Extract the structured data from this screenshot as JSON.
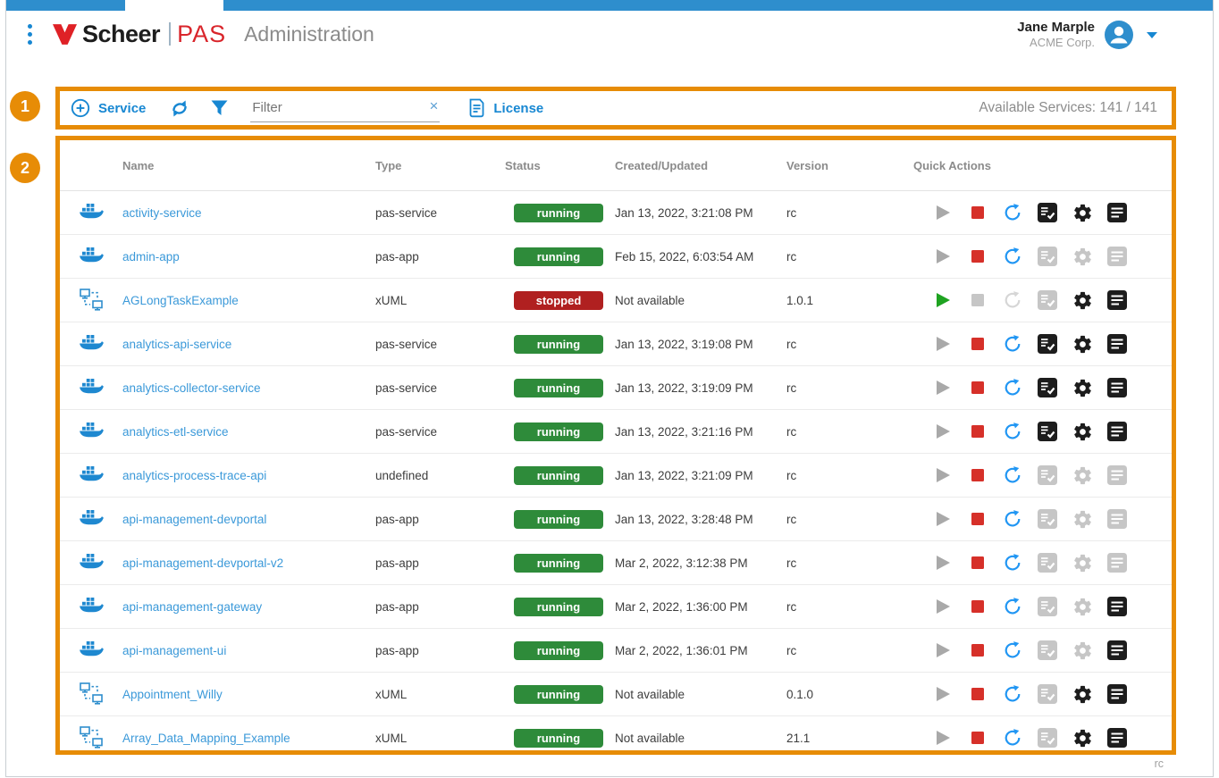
{
  "header": {
    "brand": "Scheer",
    "product": "PAS",
    "page_title": "Administration",
    "user": {
      "name": "Jane Marple",
      "org": "ACME Corp."
    }
  },
  "callouts": {
    "one": "1",
    "two": "2"
  },
  "toolbar": {
    "service_label": "Service",
    "filter_placeholder": "Filter",
    "clear_label": "×",
    "license_label": "License",
    "available_services": "Available Services: 141 / 141"
  },
  "table": {
    "columns": [
      "Name",
      "Type",
      "Status",
      "Created/Updated",
      "Version",
      "Quick Actions"
    ],
    "rows": [
      {
        "icon": "docker",
        "name": "activity-service",
        "type": "pas-service",
        "status": "running",
        "created": "Jan 13, 2022, 3:21:08 PM",
        "version": "rc",
        "actions": {
          "play": false,
          "stop": true,
          "restart": true,
          "log": true,
          "settings": true,
          "details": true
        }
      },
      {
        "icon": "docker",
        "name": "admin-app",
        "type": "pas-app",
        "status": "running",
        "created": "Feb 15, 2022, 6:03:54 AM",
        "version": "rc",
        "actions": {
          "play": false,
          "stop": true,
          "restart": true,
          "log": false,
          "settings": false,
          "details": false
        }
      },
      {
        "icon": "xuml",
        "name": "AGLongTaskExample",
        "type": "xUML",
        "status": "stopped",
        "created": "Not available",
        "version": "1.0.1",
        "actions": {
          "play": true,
          "stop": false,
          "restart": false,
          "log": false,
          "settings": true,
          "details": true
        }
      },
      {
        "icon": "docker",
        "name": "analytics-api-service",
        "type": "pas-service",
        "status": "running",
        "created": "Jan 13, 2022, 3:19:08 PM",
        "version": "rc",
        "actions": {
          "play": false,
          "stop": true,
          "restart": true,
          "log": true,
          "settings": true,
          "details": true
        }
      },
      {
        "icon": "docker",
        "name": "analytics-collector-service",
        "type": "pas-service",
        "status": "running",
        "created": "Jan 13, 2022, 3:19:09 PM",
        "version": "rc",
        "actions": {
          "play": false,
          "stop": true,
          "restart": true,
          "log": true,
          "settings": true,
          "details": true
        }
      },
      {
        "icon": "docker",
        "name": "analytics-etl-service",
        "type": "pas-service",
        "status": "running",
        "created": "Jan 13, 2022, 3:21:16 PM",
        "version": "rc",
        "actions": {
          "play": false,
          "stop": true,
          "restart": true,
          "log": true,
          "settings": true,
          "details": true
        }
      },
      {
        "icon": "docker",
        "name": "analytics-process-trace-api",
        "type": "undefined",
        "status": "running",
        "created": "Jan 13, 2022, 3:21:09 PM",
        "version": "rc",
        "actions": {
          "play": false,
          "stop": true,
          "restart": true,
          "log": false,
          "settings": false,
          "details": false
        }
      },
      {
        "icon": "docker",
        "name": "api-management-devportal",
        "type": "pas-app",
        "status": "running",
        "created": "Jan 13, 2022, 3:28:48 PM",
        "version": "rc",
        "actions": {
          "play": false,
          "stop": true,
          "restart": true,
          "log": false,
          "settings": false,
          "details": false
        }
      },
      {
        "icon": "docker",
        "name": "api-management-devportal-v2",
        "type": "pas-app",
        "status": "running",
        "created": "Mar 2, 2022, 3:12:38 PM",
        "version": "rc",
        "actions": {
          "play": false,
          "stop": true,
          "restart": true,
          "log": false,
          "settings": false,
          "details": false
        }
      },
      {
        "icon": "docker",
        "name": "api-management-gateway",
        "type": "pas-app",
        "status": "running",
        "created": "Mar 2, 2022, 1:36:00 PM",
        "version": "rc",
        "actions": {
          "play": false,
          "stop": true,
          "restart": true,
          "log": false,
          "settings": false,
          "details": true
        }
      },
      {
        "icon": "docker",
        "name": "api-management-ui",
        "type": "pas-app",
        "status": "running",
        "created": "Mar 2, 2022, 1:36:01 PM",
        "version": "rc",
        "actions": {
          "play": false,
          "stop": true,
          "restart": true,
          "log": false,
          "settings": false,
          "details": true
        }
      },
      {
        "icon": "xuml",
        "name": "Appointment_Willy",
        "type": "xUML",
        "status": "running",
        "created": "Not available",
        "version": "0.1.0",
        "actions": {
          "play": false,
          "stop": true,
          "restart": true,
          "log": false,
          "settings": true,
          "details": true
        }
      },
      {
        "icon": "xuml",
        "name": "Array_Data_Mapping_Example",
        "type": "xUML",
        "status": "running",
        "created": "Not available",
        "version": "21.1",
        "actions": {
          "play": false,
          "stop": true,
          "restart": true,
          "log": false,
          "settings": true,
          "details": true
        }
      }
    ]
  },
  "footer": {
    "hint": "rc"
  },
  "colors": {
    "accent_blue": "#1787d2",
    "topbar_blue": "#2e8ecd",
    "brand_red": "#d9252b",
    "callout_orange": "#e78c06",
    "status_running": "#2e8b3a",
    "status_stopped": "#b02020",
    "stop_red": "#d63029",
    "play_green": "#1fa321",
    "restart_blue": "#2196f3"
  }
}
